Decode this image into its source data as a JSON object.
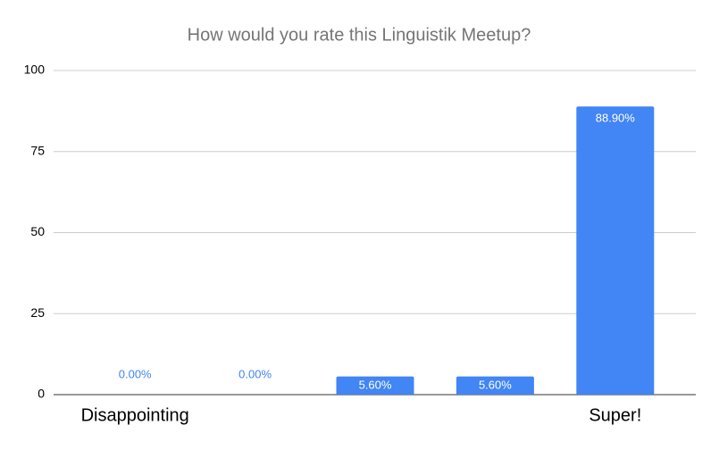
{
  "chart_data": {
    "type": "bar",
    "title": "How would you rate this Linguistik Meetup?",
    "categories": [
      "Disappointing",
      null,
      null,
      null,
      "Super!"
    ],
    "values": [
      0,
      0,
      5.6,
      5.6,
      88.9
    ],
    "value_labels": [
      "0.00%",
      "0.00%",
      "5.60%",
      "5.60%",
      "88.90%"
    ],
    "color": "#4285f4",
    "ylim": [
      0,
      100
    ],
    "yticks": [
      0,
      25,
      50,
      75,
      100
    ],
    "grid": true
  }
}
